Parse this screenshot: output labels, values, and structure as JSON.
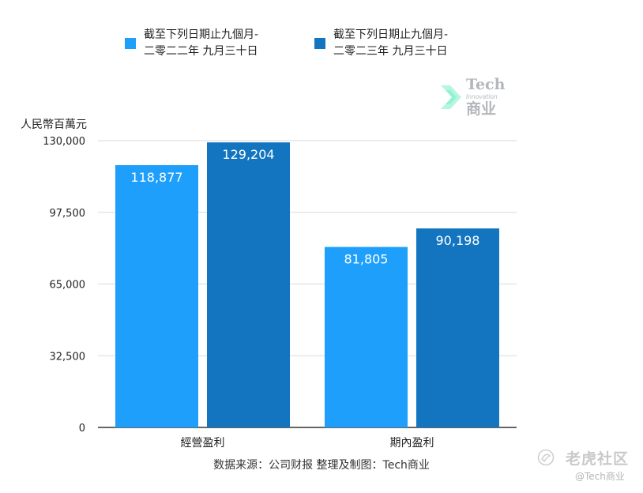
{
  "chart_data": {
    "type": "bar",
    "categories": [
      "經營盈利",
      "期內盈利"
    ],
    "series": [
      {
        "name": "截至下列日期止九個月-\n二零二二年 九月三十日",
        "values": [
          118877,
          81805
        ],
        "labels": [
          "118,877",
          "81,805"
        ],
        "color": "#1e9ffb"
      },
      {
        "name": "截至下列日期止九個月-\n二零二三年 九月三十日",
        "values": [
          129204,
          90198
        ],
        "labels": [
          "129,204",
          "90,198"
        ],
        "color": "#1375bf"
      }
    ],
    "ylabel": "人民幣百萬元",
    "ylim": [
      0,
      130000
    ],
    "yticks": [
      0,
      32500,
      65000,
      97500,
      130000
    ],
    "ytick_labels": [
      "0",
      "32,500",
      "65,000",
      "97,500",
      "130,000"
    ],
    "grid": true,
    "legend_position": "top"
  },
  "source_note": "数据来源：公司财报 整理及制图：Tech商业",
  "watermark": {
    "line1": "Tech",
    "line2": "Innovation",
    "line3": "商业"
  },
  "tiger": {
    "name": "老虎社区",
    "handle": "@Tech商业"
  },
  "colors": {
    "grid": "#d9d9d9",
    "axis": "#333333",
    "bar_label": "#ffffff"
  }
}
